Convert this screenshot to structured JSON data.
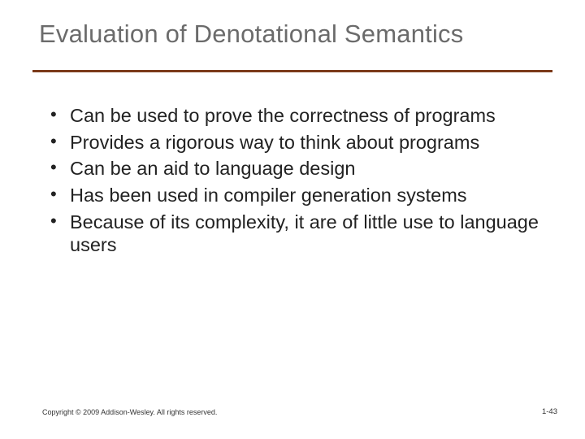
{
  "slide": {
    "title": "Evaluation of Denotational Semantics",
    "title_color": "#6b6b6b",
    "title_fontsize": 31,
    "rule_color": "#7b3a1a",
    "rule_thickness": 3,
    "bullets": [
      "Can be used to prove the correctness of programs",
      "Provides a rigorous way to think about programs",
      "Can be an aid to language design",
      "Has been used in compiler generation systems",
      "Because of its complexity, it are of little use to language users"
    ],
    "body_fontsize": 23.5,
    "body_color": "#222222",
    "background_color": "#ffffff"
  },
  "footer": {
    "copyright": "Copyright © 2009 Addison-Wesley. All rights reserved.",
    "page_number": "1-43",
    "fontsize": 9,
    "color": "#333333"
  }
}
